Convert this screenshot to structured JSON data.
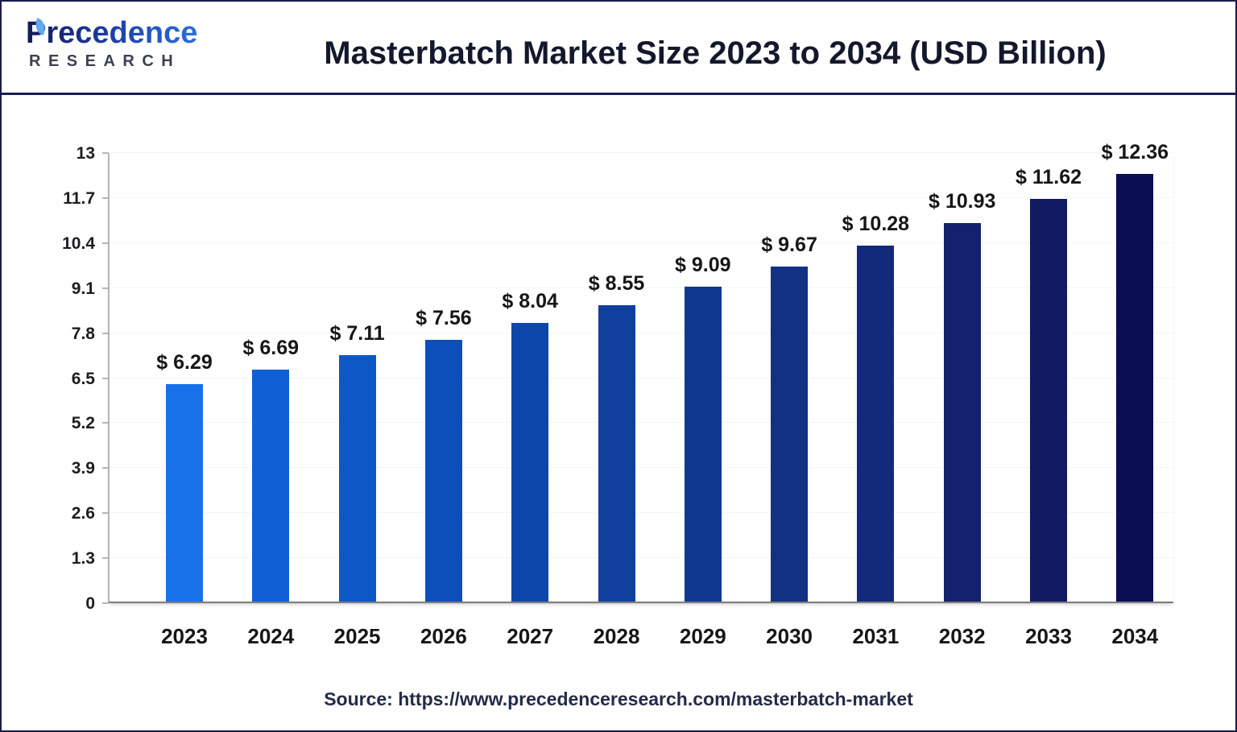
{
  "header": {
    "logo_name": "Precedence",
    "logo_subtitle": "RESEARCH",
    "title": "Masterbatch Market Size 2023 to 2034 (USD Billion)"
  },
  "chart_data": {
    "type": "bar",
    "title": "Masterbatch Market Size 2023 to 2034 (USD Billion)",
    "unit": "USD Billion",
    "categories": [
      "2023",
      "2024",
      "2025",
      "2026",
      "2027",
      "2028",
      "2029",
      "2030",
      "2031",
      "2032",
      "2033",
      "2034"
    ],
    "values": [
      6.29,
      6.69,
      7.11,
      7.56,
      8.04,
      8.55,
      9.09,
      9.67,
      10.28,
      10.93,
      11.62,
      12.36
    ],
    "bar_labels": [
      "$ 6.29",
      "$ 6.69",
      "$ 7.11",
      "$ 7.56",
      "$ 8.04",
      "$ 8.55",
      "$ 9.09",
      "$ 9.67",
      "$ 10.28",
      "$ 10.93",
      "$ 11.62",
      "$ 12.36"
    ],
    "y_ticks": [
      0,
      1.3,
      2.6,
      3.9,
      5.2,
      6.5,
      7.8,
      9.1,
      10.4,
      11.7,
      13
    ],
    "ylim": [
      0,
      13
    ],
    "xlabel": "",
    "ylabel": "",
    "legend": "none",
    "grid": "faint-horizontal",
    "bar_colors": [
      "#1871e8",
      "#0e60d4",
      "#0d57c7",
      "#0d4fba",
      "#0e47ab",
      "#0f409d",
      "#113890",
      "#123184",
      "#13297a",
      "#13226d",
      "#121a62",
      "#0b0e53"
    ]
  },
  "footer": {
    "source": "Source: https://www.precedenceresearch.com/masterbatch-market"
  }
}
